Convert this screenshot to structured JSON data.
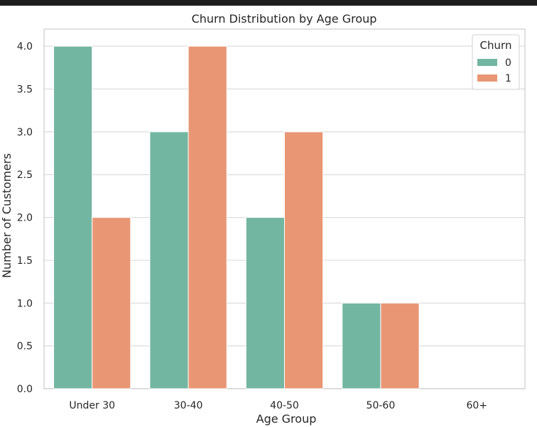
{
  "chart_data": {
    "type": "bar",
    "title": "Churn Distribution by Age Group",
    "xlabel": "Age Group",
    "ylabel": "Number of Customers",
    "categories": [
      "Under 30",
      "30-40",
      "40-50",
      "50-60",
      "60+"
    ],
    "series": [
      {
        "name": "0",
        "values": [
          4,
          3,
          2,
          1,
          0
        ],
        "color": "#72b6a1"
      },
      {
        "name": "1",
        "values": [
          2,
          4,
          3,
          1,
          0
        ],
        "color": "#e99675"
      }
    ],
    "ylim": [
      0,
      4.2
    ],
    "yticks": [
      "0.0",
      "0.5",
      "1.0",
      "1.5",
      "2.0",
      "2.5",
      "3.0",
      "3.5",
      "4.0"
    ],
    "grid": true,
    "legend": {
      "title": "Churn",
      "placement": "top-right"
    }
  },
  "colors": {
    "frame": "#ffffff",
    "grid": "#dcdcdc",
    "spine": "#cccccc",
    "text": "#262626"
  }
}
